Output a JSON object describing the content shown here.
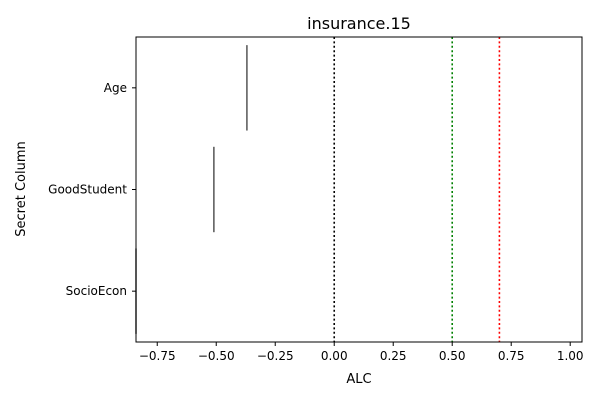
{
  "chart_data": {
    "type": "violin",
    "title": "insurance.15",
    "xlabel": "ALC",
    "ylabel": "Secret Column",
    "xlim": [
      -0.84,
      1.05
    ],
    "x_ticks": [
      -0.75,
      -0.5,
      -0.25,
      0.0,
      0.25,
      0.5,
      0.75,
      1.0
    ],
    "x_tick_labels": [
      "−0.75",
      "−0.50",
      "−0.25",
      "0.00",
      "0.25",
      "0.50",
      "0.75",
      "1.00"
    ],
    "categories": [
      "Age",
      "GoodStudent",
      "SocioEcon"
    ],
    "values": [
      -0.37,
      -0.51,
      -0.84
    ],
    "reference_lines": [
      {
        "x": 0.0,
        "color": "#000000",
        "style": "dotted"
      },
      {
        "x": 0.5,
        "color": "#008000",
        "style": "dotted"
      },
      {
        "x": 0.7,
        "color": "#ff0000",
        "style": "dotted"
      }
    ],
    "grid": false,
    "legend": "none",
    "mark_color": "#555555"
  }
}
